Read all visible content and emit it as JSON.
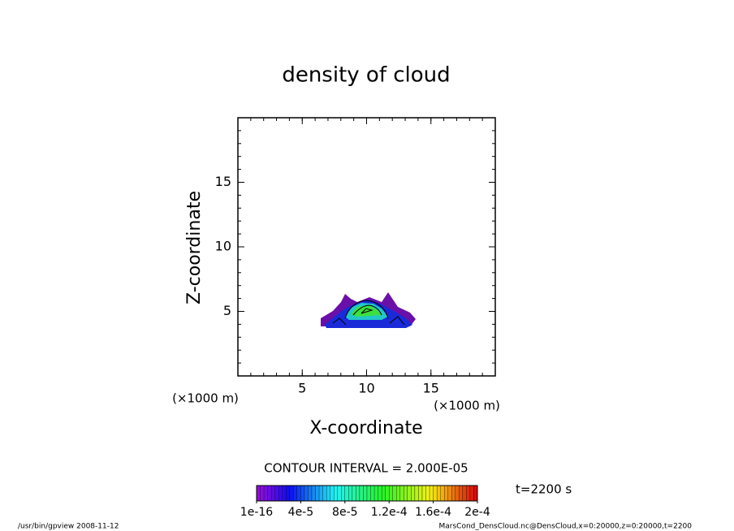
{
  "chart_data": {
    "type": "contour",
    "title": "density of cloud",
    "xlabel": "X-coordinate",
    "ylabel": "Z-coordinate",
    "x_unit": "(×1000 m)",
    "y_unit": "(×1000 m)",
    "xlim": [
      0,
      20
    ],
    "ylim": [
      0,
      20
    ],
    "xticks": [
      5,
      10,
      15
    ],
    "yticks": [
      5,
      10,
      15
    ],
    "minor_step": 1,
    "contour_interval_label": "CONTOUR INTERVAL = 2.000E-05",
    "clim": [
      1e-16,
      0.0002
    ],
    "colorbar_ticks": [
      {
        "value": 1e-16,
        "label": "1e-16"
      },
      {
        "value": 4e-05,
        "label": "4e-5"
      },
      {
        "value": 8e-05,
        "label": "8e-5"
      },
      {
        "value": 0.00012,
        "label": "1.2e-4"
      },
      {
        "value": 0.00016,
        "label": "1.6e-4"
      },
      {
        "value": 0.0002,
        "label": "2e-4"
      }
    ],
    "time_label": "t=2200 s",
    "footer_left": "/usr/bin/gpview   2008-11-12",
    "footer_right": "MarsCond_DensCloud.nc@DensCloud,x=0:20000,z=0:20000,t=2200"
  }
}
